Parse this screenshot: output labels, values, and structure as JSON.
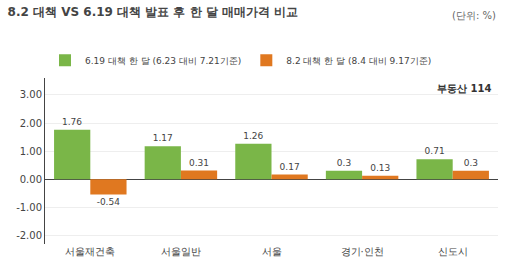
{
  "chart_data": {
    "type": "bar",
    "title": "8.2 대책 VS 6.19 대책 발표 후 한 달 매매가격 비교",
    "annotations": [
      "(단위: %)",
      "부동산",
      "114"
    ],
    "categories": [
      "서울재건축",
      "서울일반",
      "서울",
      "경기·인천",
      "신도시"
    ],
    "series": [
      {
        "name": "6.19 대책 한 달 (6.23 대비 7.21기준)",
        "color": "#7ab648",
        "values": [
          1.76,
          1.17,
          1.26,
          0.3,
          0.71
        ]
      },
      {
        "name": "8.2 대책 한 달 (8.4 대비 9.17기준)",
        "color": "#e07820",
        "values": [
          -0.54,
          0.31,
          0.17,
          0.13,
          0.3
        ]
      }
    ],
    "ylim": [
      -2.3,
      3.6
    ],
    "yticks": [
      {
        "value": -2,
        "label": "-2.00"
      },
      {
        "value": -1,
        "label": "-1.00"
      },
      {
        "value": 0,
        "label": "0.00"
      },
      {
        "value": 1,
        "label": "1.00"
      },
      {
        "value": 2,
        "label": "2.00"
      },
      {
        "value": 3,
        "label": "3.00"
      }
    ],
    "grid": true,
    "legend": "top left",
    "data_labels": true
  }
}
